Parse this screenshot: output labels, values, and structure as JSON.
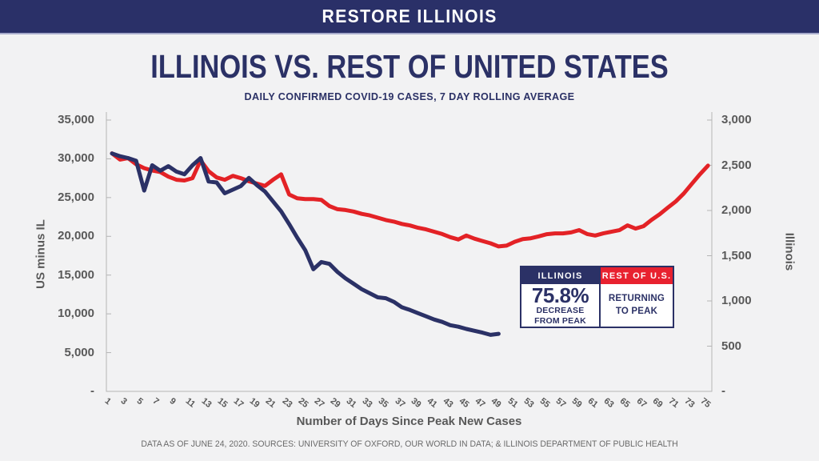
{
  "header": {
    "title": "RESTORE ILLINOIS"
  },
  "footer": "DATA AS OF JUNE 24, 2020. SOURCES: UNIVERSITY OF OXFORD, OUR WORLD IN DATA; & ILLINOIS DEPARTMENT OF PUBLIC HEALTH",
  "colors": {
    "navy": "#2b3166",
    "line_red": "#e32226",
    "legend_red": "#e8212f",
    "header_bg": "#2a3068",
    "header_border": "#a6aacb",
    "axis_text": "#595959",
    "footer_text": "#6a6a6a",
    "background": "#f2f2f3"
  },
  "chart_data": {
    "type": "line",
    "title": "ILLINOIS VS. REST OF UNITED STATES",
    "subtitle": "DAILY CONFIRMED COVID-19 CASES, 7 DAY ROLLING AVERAGE",
    "xlabel": "Number of Days Since Peak New Cases",
    "grid": false,
    "x_range": [
      1,
      75
    ],
    "x_tick_labels": [
      "1",
      "3",
      "5",
      "7",
      "9",
      "11",
      "13",
      "15",
      "17",
      "19",
      "21",
      "23",
      "25",
      "27",
      "29",
      "31",
      "33",
      "35",
      "37",
      "39",
      "41",
      "43",
      "45",
      "47",
      "49",
      "51",
      "53",
      "55",
      "57",
      "59",
      "61",
      "63",
      "65",
      "67",
      "69",
      "71",
      "73",
      "75"
    ],
    "left_axis": {
      "label": "US minus IL",
      "lim": [
        0,
        35000
      ],
      "tick_step": 5000,
      "tick_labels": [
        "35,000",
        "30,000",
        "25,000",
        "20,000",
        "15,000",
        "10,000",
        "5,000",
        "-"
      ]
    },
    "right_axis": {
      "label": "Illinois",
      "lim": [
        0,
        3000
      ],
      "tick_step": 500,
      "tick_labels": [
        "3,000",
        "2,500",
        "2,000",
        "1,500",
        "1,000",
        "500",
        "-"
      ]
    },
    "series": [
      {
        "name": "Rest of U.S. (US minus IL)",
        "axis": "left",
        "color": "#e32226",
        "x_start": 1,
        "x_step": 1,
        "values": [
          30700,
          29900,
          30100,
          29300,
          28800,
          28500,
          28300,
          27700,
          27300,
          27200,
          27500,
          29800,
          28400,
          27600,
          27300,
          27800,
          27500,
          27100,
          26800,
          26500,
          27300,
          28000,
          25400,
          24900,
          24800,
          24800,
          24700,
          23900,
          23500,
          23400,
          23200,
          22900,
          22700,
          22400,
          22100,
          21900,
          21600,
          21400,
          21100,
          20900,
          20600,
          20300,
          19900,
          19600,
          20100,
          19700,
          19400,
          19100,
          18700,
          18800,
          19300,
          19650,
          19750,
          20000,
          20280,
          20380,
          20380,
          20500,
          20800,
          20300,
          20100,
          20380,
          20590,
          20790,
          21410,
          21000,
          21310,
          22130,
          22850,
          23680,
          24500,
          25530,
          26770,
          28000,
          29130
        ]
      },
      {
        "name": "Illinois",
        "axis": "right",
        "color": "#2b3166",
        "x_start": 1,
        "x_step": 1,
        "values": [
          2630,
          2600,
          2580,
          2550,
          2220,
          2500,
          2440,
          2490,
          2430,
          2400,
          2500,
          2580,
          2320,
          2310,
          2190,
          2230,
          2270,
          2360,
          2280,
          2210,
          2100,
          1990,
          1850,
          1700,
          1560,
          1350,
          1430,
          1410,
          1320,
          1250,
          1190,
          1130,
          1085,
          1040,
          1030,
          990,
          930,
          900,
          865,
          830,
          795,
          768,
          732,
          715,
          690,
          670,
          650,
          625,
          636
        ]
      }
    ],
    "callout": {
      "illinois": {
        "header": "ILLINOIS",
        "stat": "75.8%",
        "line1": "DECREASE",
        "line2": "FROM PEAK"
      },
      "rest": {
        "header": "REST OF U.S.",
        "line1": "RETURNING",
        "line2": "TO PEAK"
      }
    }
  }
}
